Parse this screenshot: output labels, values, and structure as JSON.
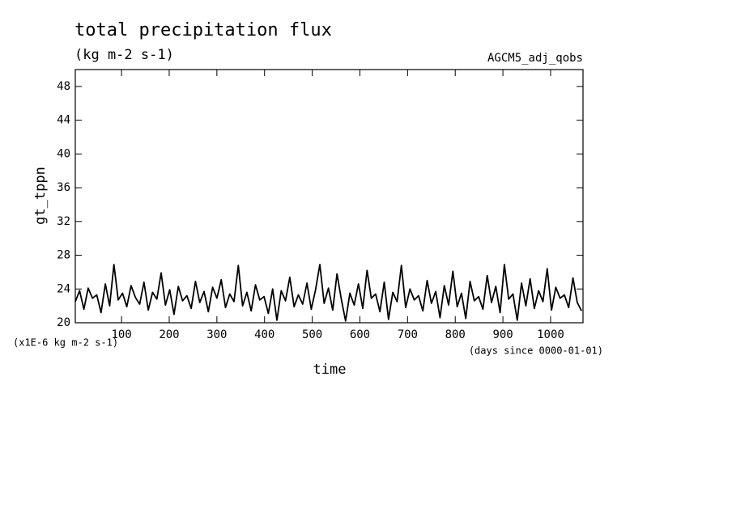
{
  "chart_data": {
    "type": "line",
    "title": "total precipitation flux",
    "subtitle": "(kg m-2 s-1)",
    "dataset_label": "AGCM5_adj_qobs",
    "y_label": "gt_tppn",
    "y_unit_note": "(x1E-6 kg m-2 s-1)",
    "x_label": "time",
    "x_unit_note": "(days since 0000-01-01)",
    "xlim": [
      3,
      1068
    ],
    "ylim": [
      20,
      50
    ],
    "xticks": [
      100,
      200,
      300,
      400,
      500,
      600,
      700,
      800,
      900,
      1000
    ],
    "yticks": [
      20,
      24,
      28,
      32,
      36,
      40,
      44,
      48
    ],
    "x": [
      3,
      12,
      21,
      30,
      39,
      48,
      57,
      66,
      75,
      84,
      93,
      102,
      111,
      120,
      129,
      138,
      147,
      156,
      165,
      174,
      183,
      192,
      201,
      210,
      219,
      228,
      237,
      246,
      255,
      264,
      273,
      282,
      291,
      300,
      309,
      318,
      327,
      336,
      345,
      354,
      363,
      372,
      381,
      390,
      399,
      408,
      417,
      426,
      435,
      444,
      453,
      462,
      471,
      480,
      489,
      498,
      507,
      516,
      525,
      534,
      543,
      552,
      561,
      570,
      579,
      588,
      597,
      606,
      615,
      624,
      633,
      642,
      651,
      660,
      669,
      678,
      687,
      696,
      705,
      714,
      723,
      732,
      741,
      750,
      759,
      768,
      777,
      786,
      795,
      804,
      813,
      822,
      831,
      840,
      849,
      858,
      867,
      876,
      885,
      894,
      903,
      912,
      921,
      930,
      939,
      948,
      957,
      966,
      975,
      984,
      993,
      1002,
      1011,
      1020,
      1029,
      1038,
      1047,
      1056,
      1065
    ],
    "series": [
      {
        "name": "gt_tppn",
        "color": "#000000",
        "values": [
          22.5,
          23.8,
          21.6,
          24.1,
          22.9,
          23.3,
          21.2,
          24.6,
          22.0,
          26.9,
          22.7,
          23.5,
          21.9,
          24.4,
          23.0,
          22.2,
          24.8,
          21.5,
          23.6,
          22.8,
          25.9,
          22.1,
          23.9,
          21.0,
          24.3,
          22.6,
          23.2,
          21.7,
          24.9,
          22.4,
          23.7,
          21.3,
          24.2,
          22.9,
          25.1,
          21.8,
          23.4,
          22.5,
          26.8,
          22.0,
          23.6,
          21.4,
          24.5,
          22.7,
          23.1,
          21.1,
          24.0,
          20.3,
          23.8,
          22.6,
          25.4,
          21.9,
          23.3,
          22.2,
          24.7,
          21.6,
          23.9,
          26.9,
          22.3,
          24.1,
          21.5,
          25.8,
          22.8,
          20.2,
          23.5,
          22.1,
          24.6,
          21.7,
          26.2,
          22.9,
          23.4,
          21.3,
          24.8,
          20.4,
          23.6,
          22.5,
          26.8,
          21.8,
          24.0,
          22.7,
          23.2,
          21.4,
          25.0,
          22.3,
          23.7,
          20.6,
          24.4,
          22.1,
          26.1,
          21.9,
          23.5,
          20.5,
          24.9,
          22.6,
          23.1,
          21.6,
          25.6,
          22.4,
          24.3,
          21.2,
          26.9,
          22.8,
          23.4,
          20.3,
          24.7,
          22.0,
          25.2,
          21.7,
          23.8,
          22.5,
          26.4,
          21.5,
          24.2,
          22.9,
          23.3,
          21.8,
          25.3,
          22.4,
          21.4
        ]
      }
    ]
  }
}
